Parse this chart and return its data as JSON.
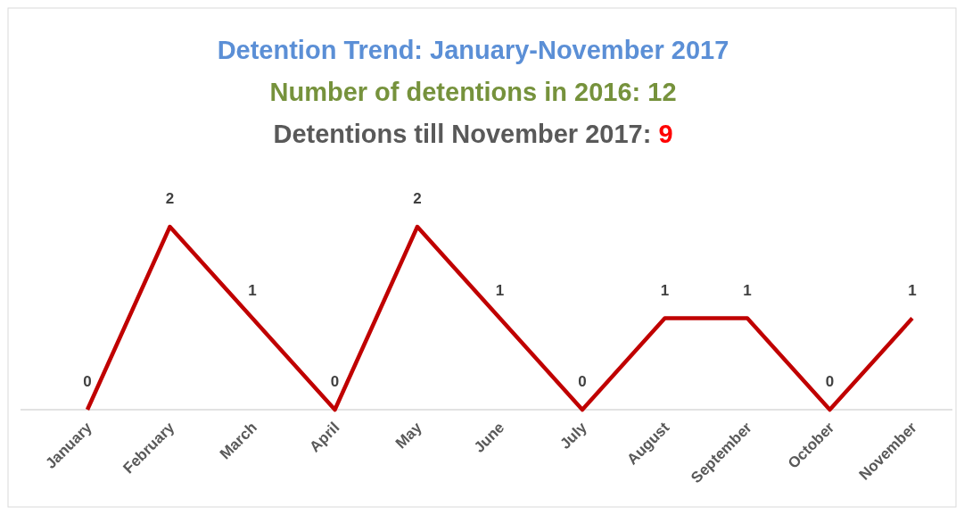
{
  "chart_data": {
    "type": "line",
    "title": "Detention Trend: January-November 2017",
    "subtitle": "Number of detentions in 2016: 12",
    "annotations": [
      "Detentions till November 2017: 9"
    ],
    "categories": [
      "January",
      "February",
      "March",
      "April",
      "May",
      "June",
      "July",
      "August",
      "September",
      "October",
      "November"
    ],
    "series": [
      {
        "color": "#c00000",
        "values": [
          0,
          2,
          1,
          0,
          2,
          1,
          0,
          1,
          1,
          0,
          1
        ]
      }
    ],
    "data_labels": true,
    "marker": "none",
    "line_style": "solid"
  }
}
